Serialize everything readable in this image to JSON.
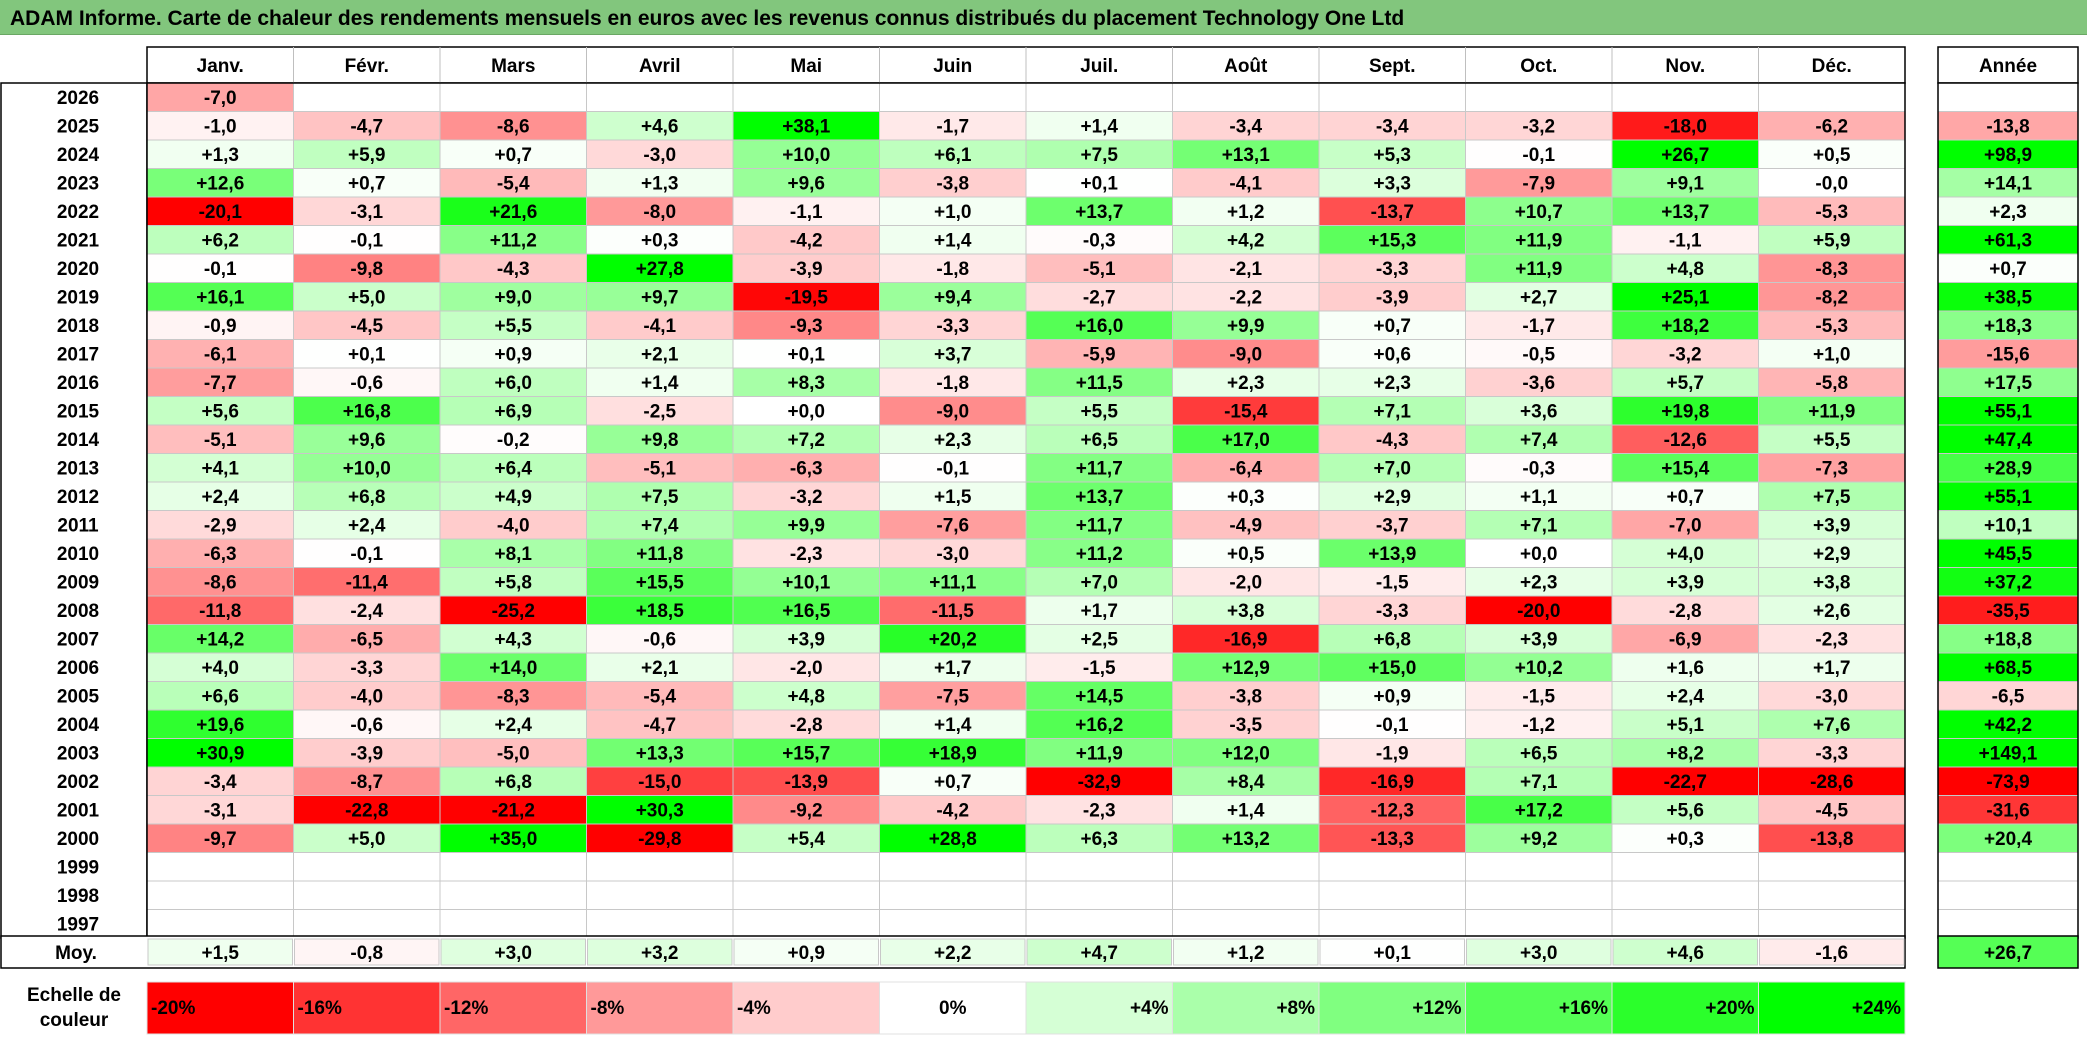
{
  "title": "ADAM Informe. Carte de chaleur des rendements mensuels en euros avec les revenus connus distribués du placement Technology One Ltd",
  "chart_data": {
    "type": "heatmap",
    "columns": [
      "Janv.",
      "Févr.",
      "Mars",
      "Avril",
      "Mai",
      "Juin",
      "Juil.",
      "Août",
      "Sept.",
      "Oct.",
      "Nov.",
      "Déc."
    ],
    "year_column": "Année",
    "avg_label": "Moy.",
    "rows": [
      {
        "year": "2026",
        "values": [
          -7.0,
          null,
          null,
          null,
          null,
          null,
          null,
          null,
          null,
          null,
          null,
          null
        ],
        "annual": null
      },
      {
        "year": "2025",
        "values": [
          -1.0,
          -4.7,
          -8.6,
          4.6,
          38.1,
          -1.7,
          1.4,
          -3.4,
          -3.4,
          -3.2,
          -18.0,
          -6.2
        ],
        "annual": -13.8
      },
      {
        "year": "2024",
        "values": [
          1.3,
          5.9,
          0.7,
          -3.0,
          10.0,
          6.1,
          7.5,
          13.1,
          5.3,
          -0.1,
          26.7,
          0.5
        ],
        "annual": 98.9
      },
      {
        "year": "2023",
        "values": [
          12.6,
          0.7,
          -5.4,
          1.3,
          9.6,
          -3.8,
          0.1,
          -4.1,
          3.3,
          -7.9,
          9.1,
          -0.0
        ],
        "annual": 14.1
      },
      {
        "year": "2022",
        "values": [
          -20.1,
          -3.1,
          21.6,
          -8.0,
          -1.1,
          1.0,
          13.7,
          1.2,
          -13.7,
          10.7,
          13.7,
          -5.3
        ],
        "annual": 2.3
      },
      {
        "year": "2021",
        "values": [
          6.2,
          -0.1,
          11.2,
          0.3,
          -4.2,
          1.4,
          -0.3,
          4.2,
          15.3,
          11.9,
          -1.1,
          5.9
        ],
        "annual": 61.3
      },
      {
        "year": "2020",
        "values": [
          -0.1,
          -9.8,
          -4.3,
          27.8,
          -3.9,
          -1.8,
          -5.1,
          -2.1,
          -3.3,
          11.9,
          4.8,
          -8.3
        ],
        "annual": 0.7
      },
      {
        "year": "2019",
        "values": [
          16.1,
          5.0,
          9.0,
          9.7,
          -19.5,
          9.4,
          -2.7,
          -2.2,
          -3.9,
          2.7,
          25.1,
          -8.2
        ],
        "annual": 38.5
      },
      {
        "year": "2018",
        "values": [
          -0.9,
          -4.5,
          5.5,
          -4.1,
          -9.3,
          -3.3,
          16.0,
          9.9,
          0.7,
          -1.7,
          18.2,
          -5.3
        ],
        "annual": 18.3
      },
      {
        "year": "2017",
        "values": [
          -6.1,
          0.1,
          0.9,
          2.1,
          0.1,
          3.7,
          -5.9,
          -9.0,
          0.6,
          -0.5,
          -3.2,
          1.0
        ],
        "annual": -15.6
      },
      {
        "year": "2016",
        "values": [
          -7.7,
          -0.6,
          6.0,
          1.4,
          8.3,
          -1.8,
          11.5,
          2.3,
          2.3,
          -3.6,
          5.7,
          -5.8
        ],
        "annual": 17.5
      },
      {
        "year": "2015",
        "values": [
          5.6,
          16.8,
          6.9,
          -2.5,
          0.0,
          -9.0,
          5.5,
          -15.4,
          7.1,
          3.6,
          19.8,
          11.9
        ],
        "annual": 55.1
      },
      {
        "year": "2014",
        "values": [
          -5.1,
          9.6,
          -0.2,
          9.8,
          7.2,
          2.3,
          6.5,
          17.0,
          -4.3,
          7.4,
          -12.6,
          5.5
        ],
        "annual": 47.4
      },
      {
        "year": "2013",
        "values": [
          4.1,
          10.0,
          6.4,
          -5.1,
          -6.3,
          -0.1,
          11.7,
          -6.4,
          7.0,
          -0.3,
          15.4,
          -7.3
        ],
        "annual": 28.9
      },
      {
        "year": "2012",
        "values": [
          2.4,
          6.8,
          4.9,
          7.5,
          -3.2,
          1.5,
          13.7,
          0.3,
          2.9,
          1.1,
          0.7,
          7.5
        ],
        "annual": 55.1
      },
      {
        "year": "2011",
        "values": [
          -2.9,
          2.4,
          -4.0,
          7.4,
          9.9,
          -7.6,
          11.7,
          -4.9,
          -3.7,
          7.1,
          -7.0,
          3.9
        ],
        "annual": 10.1
      },
      {
        "year": "2010",
        "values": [
          -6.3,
          -0.1,
          8.1,
          11.8,
          -2.3,
          -3.0,
          11.2,
          0.5,
          13.9,
          0.0,
          4.0,
          2.9
        ],
        "annual": 45.5
      },
      {
        "year": "2009",
        "values": [
          -8.6,
          -11.4,
          5.8,
          15.5,
          10.1,
          11.1,
          7.0,
          -2.0,
          -1.5,
          2.3,
          3.9,
          3.8
        ],
        "annual": 37.2
      },
      {
        "year": "2008",
        "values": [
          -11.8,
          -2.4,
          -25.2,
          18.5,
          16.5,
          -11.5,
          1.7,
          3.8,
          -3.3,
          -20.0,
          -2.8,
          2.6
        ],
        "annual": -35.5
      },
      {
        "year": "2007",
        "values": [
          14.2,
          -6.5,
          4.3,
          -0.6,
          3.9,
          20.2,
          2.5,
          -16.9,
          6.8,
          3.9,
          -6.9,
          -2.3
        ],
        "annual": 18.8
      },
      {
        "year": "2006",
        "values": [
          4.0,
          -3.3,
          14.0,
          2.1,
          -2.0,
          1.7,
          -1.5,
          12.9,
          15.0,
          10.2,
          1.6,
          1.7
        ],
        "annual": 68.5
      },
      {
        "year": "2005",
        "values": [
          6.6,
          -4.0,
          -8.3,
          -5.4,
          4.8,
          -7.5,
          14.5,
          -3.8,
          0.9,
          -1.5,
          2.4,
          -3.0
        ],
        "annual": -6.5
      },
      {
        "year": "2004",
        "values": [
          19.6,
          -0.6,
          2.4,
          -4.7,
          -2.8,
          1.4,
          16.2,
          -3.5,
          -0.1,
          -1.2,
          5.1,
          7.6
        ],
        "annual": 42.2
      },
      {
        "year": "2003",
        "values": [
          30.9,
          -3.9,
          -5.0,
          13.3,
          15.7,
          18.9,
          11.9,
          12.0,
          -1.9,
          6.5,
          8.2,
          -3.3
        ],
        "annual": 149.1
      },
      {
        "year": "2002",
        "values": [
          -3.4,
          -8.7,
          6.8,
          -15.0,
          -13.9,
          0.7,
          -32.9,
          8.4,
          -16.9,
          7.1,
          -22.7,
          -28.6
        ],
        "annual": -73.9
      },
      {
        "year": "2001",
        "values": [
          -3.1,
          -22.8,
          -21.2,
          30.3,
          -9.2,
          -4.2,
          -2.3,
          1.4,
          -12.3,
          17.2,
          5.6,
          -4.5
        ],
        "annual": -31.6
      },
      {
        "year": "2000",
        "values": [
          -9.7,
          5.0,
          35.0,
          -29.8,
          5.4,
          28.8,
          6.3,
          13.2,
          -13.3,
          9.2,
          0.3,
          -13.8
        ],
        "annual": 20.4
      },
      {
        "year": "1999",
        "values": [
          null,
          null,
          null,
          null,
          null,
          null,
          null,
          null,
          null,
          null,
          null,
          null
        ],
        "annual": null
      },
      {
        "year": "1998",
        "values": [
          null,
          null,
          null,
          null,
          null,
          null,
          null,
          null,
          null,
          null,
          null,
          null
        ],
        "annual": null
      },
      {
        "year": "1997",
        "values": [
          null,
          null,
          null,
          null,
          null,
          null,
          null,
          null,
          null,
          null,
          null,
          null
        ],
        "annual": null
      }
    ],
    "averages": [
      1.5,
      -0.8,
      3.0,
      3.2,
      0.9,
      2.2,
      4.7,
      1.2,
      0.1,
      3.0,
      4.6,
      -1.6
    ],
    "average_annual": 26.7,
    "scale_label_line1": "Echelle de",
    "scale_label_line2": "couleur",
    "scale": [
      -20,
      -16,
      -12,
      -8,
      -4,
      0,
      4,
      8,
      12,
      16,
      20,
      24
    ],
    "scale_labels": [
      "-20%",
      "-16%",
      "-12%",
      "-8%",
      "-4%",
      "0%",
      "+4%",
      "+8%",
      "+12%",
      "+16%",
      "+20%",
      "+24%"
    ],
    "colors": {
      "negative": "#ff0000",
      "neutral": "#ffffff",
      "positive": "#00ff00",
      "title_bg": "#82c67d"
    }
  }
}
